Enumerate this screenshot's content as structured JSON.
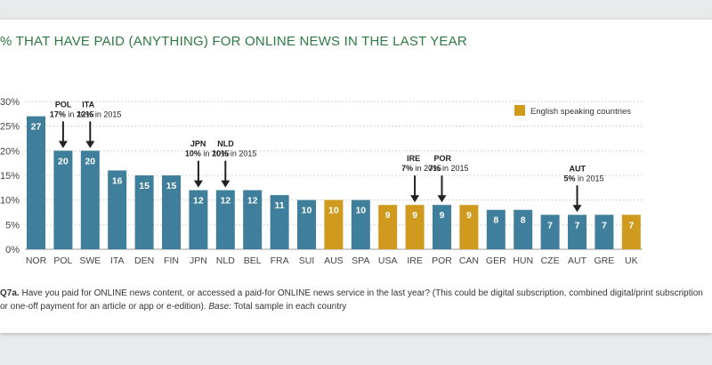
{
  "chart_data": {
    "type": "bar",
    "title": "% THAT HAVE PAID (ANYTHING) FOR ONLINE NEWS IN THE LAST YEAR",
    "ylim": [
      0,
      30
    ],
    "yticks": [
      "0%",
      "5%",
      "10%",
      "15%",
      "20%",
      "25%",
      "30%"
    ],
    "categories": [
      "NOR",
      "POL",
      "SWE",
      "ITA",
      "DEN",
      "FIN",
      "JPN",
      "NLD",
      "BEL",
      "FRA",
      "SUI",
      "AUS",
      "SPA",
      "USA",
      "IRE",
      "POR",
      "CAN",
      "GER",
      "HUN",
      "CZE",
      "AUT",
      "GRE",
      "UK"
    ],
    "values": [
      27,
      20,
      20,
      16,
      15,
      15,
      12,
      12,
      12,
      11,
      10,
      10,
      10,
      9,
      9,
      9,
      9,
      8,
      8,
      7,
      7,
      7,
      7
    ],
    "english_speaking": [
      false,
      false,
      false,
      false,
      false,
      false,
      false,
      false,
      false,
      false,
      false,
      true,
      false,
      true,
      true,
      false,
      true,
      false,
      false,
      false,
      false,
      false,
      true
    ],
    "legend": {
      "label": "English speaking countries",
      "position": "top-right"
    },
    "colors": {
      "default": "#3f7f9b",
      "english": "#cf9a1d",
      "axis_text": "#444444",
      "grid": "#bbbbbb"
    },
    "annotations": [
      {
        "category": "POL",
        "country": "POL",
        "value": "17%",
        "suffix": " in 2015"
      },
      {
        "category": "SWE",
        "country": "ITA",
        "value": "12%",
        "suffix": " in 2015"
      },
      {
        "category": "JPN",
        "country": "JPN",
        "value": "10%",
        "suffix": " in 2015"
      },
      {
        "category": "NLD",
        "country": "NLD",
        "value": "10%",
        "suffix": " in 2015"
      },
      {
        "category": "IRE",
        "country": "IRE",
        "value": "7%",
        "suffix": " in 2015"
      },
      {
        "category": "POR",
        "country": "POR",
        "value": "7%",
        "suffix": " in 2015"
      },
      {
        "category": "AUT",
        "country": "AUT",
        "value": "5%",
        "suffix": " in 2015"
      }
    ]
  },
  "footnote": {
    "q_label": "Q7a.",
    "question": " Have you paid for ONLINE news content, or accessed a paid-for ONLINE news service in the last year? (This could be digital subscription, combined digital/print subscription or one-off payment for an article or app or e-edition). ",
    "base_label": "Base:",
    "base_text": " Total sample in each country"
  }
}
